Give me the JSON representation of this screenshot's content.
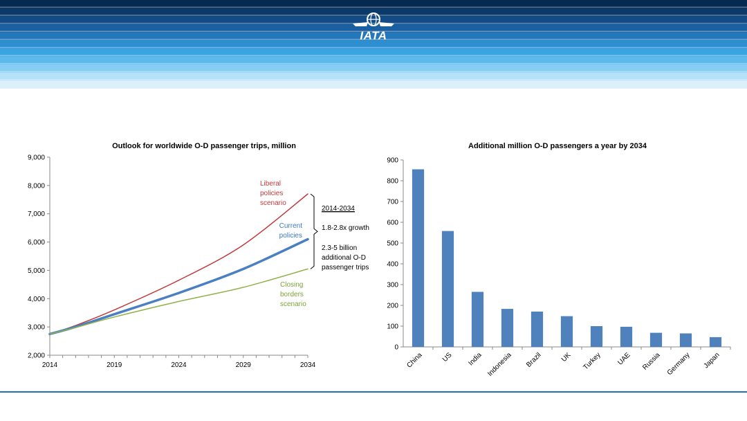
{
  "header": {
    "logo_text": "IATA",
    "stripe_colors": [
      "#062a4f",
      "#0b3a6a",
      "#124b85",
      "#1a5fa0",
      "#2377ba",
      "#2d8fd0",
      "#3aa4e0",
      "#5cb9ec",
      "#86cdf3",
      "#b4e0f8",
      "#dcf0fc"
    ]
  },
  "colors": {
    "liberal": "#c0393b",
    "current": "#4a7fc1",
    "closing": "#8fb34a",
    "bar": "#4f81bd",
    "footer_line": "#1f6fb2"
  },
  "chart_data": [
    {
      "type": "line",
      "title": "Outlook for worldwide O-D passenger trips, million",
      "x": [
        2014,
        2016,
        2019,
        2024,
        2029,
        2034
      ],
      "x_ticks": [
        "2014",
        "2019",
        "2024",
        "2029",
        "2034"
      ],
      "ylim": [
        2000,
        9000
      ],
      "y_ticks": [
        "2,000",
        "3,000",
        "4,000",
        "5,000",
        "6,000",
        "7,000",
        "8,000",
        "9,000"
      ],
      "series": [
        {
          "key": "liberal",
          "values": [
            2750,
            3050,
            3600,
            4650,
            5900,
            7700
          ]
        },
        {
          "key": "current",
          "values": [
            2750,
            3000,
            3450,
            4200,
            5050,
            6100
          ]
        },
        {
          "key": "closing",
          "values": [
            2750,
            2980,
            3350,
            3900,
            4400,
            5050
          ]
        }
      ],
      "annotations": {
        "liberal": [
          "Liberal",
          "policies",
          "scenario"
        ],
        "current": [
          "Current",
          "policies"
        ],
        "closing": [
          "Closing",
          "borders",
          "scenario"
        ],
        "period": "2014-2034",
        "growth": "1.8-2.8x growth",
        "additional": [
          "2.3-5 billion",
          "additional  O-D",
          "passenger trips"
        ]
      }
    },
    {
      "type": "bar",
      "title": "Additional million O-D passengers a year by 2034",
      "categories": [
        "China",
        "US",
        "India",
        "Indonesia",
        "Brazil",
        "UK",
        "Turkey",
        "UAE",
        "Russia",
        "Germany",
        "Japan"
      ],
      "values": [
        855,
        558,
        265,
        183,
        170,
        148,
        100,
        97,
        68,
        65,
        47
      ],
      "ylim": [
        0,
        900
      ],
      "y_ticks": [
        "0",
        "100",
        "200",
        "300",
        "400",
        "500",
        "600",
        "700",
        "800",
        "900"
      ]
    }
  ]
}
